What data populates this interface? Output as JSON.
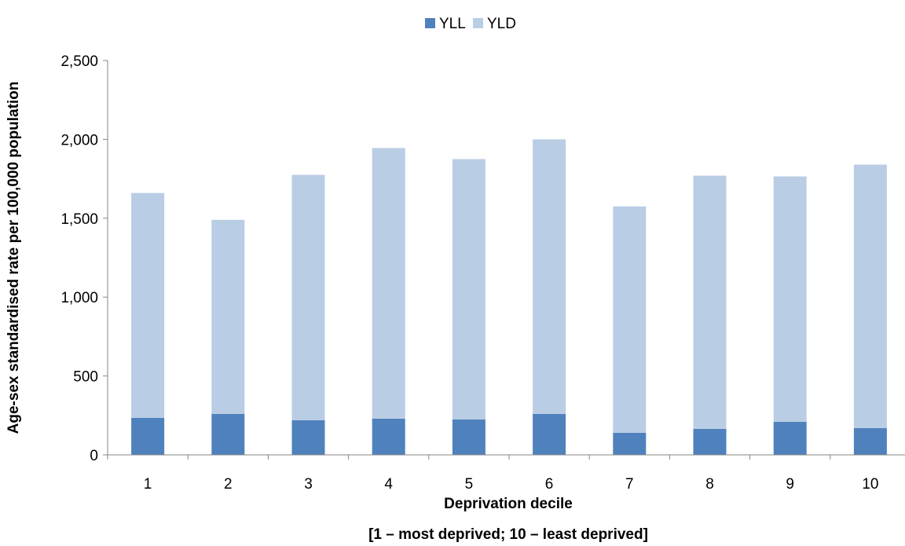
{
  "chart_data": {
    "type": "bar",
    "stacked": true,
    "categories": [
      "1",
      "2",
      "3",
      "4",
      "5",
      "6",
      "7",
      "8",
      "9",
      "10"
    ],
    "series": [
      {
        "name": "YLL",
        "color": "#4f81bd",
        "values": [
          235,
          260,
          220,
          230,
          225,
          260,
          140,
          165,
          210,
          170
        ]
      },
      {
        "name": "YLD",
        "color": "#b9cde5",
        "values": [
          1425,
          1230,
          1555,
          1715,
          1650,
          1740,
          1435,
          1605,
          1555,
          1670
        ]
      }
    ],
    "title": "",
    "xlabel": "Deprivation decile",
    "xlabel_line2": "[1 – most deprived; 10 – least deprived]",
    "ylabel": "Age-sex standardised rate per 100,000 population",
    "ylim": [
      0,
      2500
    ],
    "yticks": [
      0,
      500,
      1000,
      1500,
      2000,
      2500
    ],
    "ytick_labels": [
      "0",
      "500",
      "1,000",
      "1,500",
      "2,000",
      "2,500"
    ],
    "grid": false,
    "legend_position": "top"
  }
}
